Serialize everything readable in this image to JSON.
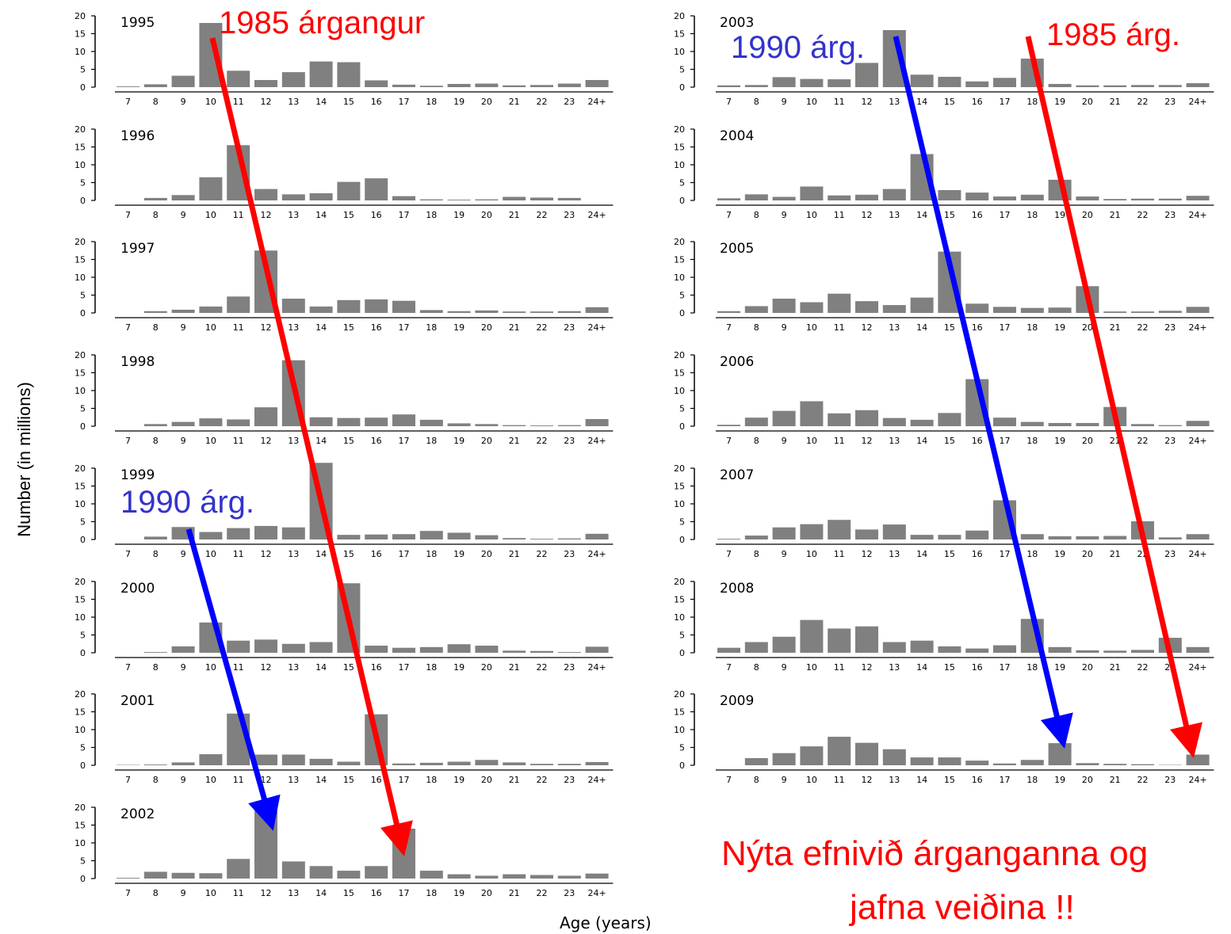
{
  "chart_data": {
    "type": "bar",
    "ylabel": "Number (in millions)",
    "xlabel": "Age (years)",
    "ylim": [
      0,
      20
    ],
    "yticks": [
      "0",
      "5",
      "10",
      "15",
      "20"
    ],
    "categories": [
      "7",
      "8",
      "9",
      "10",
      "11",
      "12",
      "13",
      "14",
      "15",
      "16",
      "17",
      "18",
      "19",
      "20",
      "21",
      "22",
      "23",
      "24+"
    ],
    "bar_color": "#808080",
    "panels": [
      {
        "year": "1995",
        "values": [
          0.2,
          0.8,
          3.2,
          18,
          4.6,
          2,
          4.2,
          7.2,
          7,
          1.9,
          0.7,
          0.4,
          0.9,
          1,
          0.5,
          0.6,
          1,
          2
        ]
      },
      {
        "year": "1996",
        "values": [
          0,
          0.7,
          1.5,
          6.5,
          15.5,
          3.2,
          1.7,
          2,
          5.2,
          6.2,
          1.2,
          0.3,
          0.2,
          0.3,
          1,
          0.8,
          0.7,
          0
        ]
      },
      {
        "year": "1997",
        "values": [
          0,
          0.5,
          0.9,
          1.8,
          4.6,
          17.5,
          4,
          1.8,
          3.6,
          3.8,
          3.4,
          0.8,
          0.5,
          0.7,
          0.4,
          0.4,
          0.5,
          1.6
        ]
      },
      {
        "year": "1998",
        "values": [
          0,
          0.6,
          1.2,
          2.2,
          1.9,
          5.3,
          18.5,
          2.5,
          2.3,
          2.4,
          3.3,
          1.8,
          0.8,
          0.6,
          0.3,
          0.2,
          0.3,
          2
        ]
      },
      {
        "year": "1999",
        "values": [
          0,
          0.8,
          3.5,
          2.1,
          3.2,
          3.8,
          3.4,
          21.5,
          1.3,
          1.4,
          1.5,
          2.4,
          1.9,
          1.2,
          0.4,
          0.2,
          0.3,
          1.6
        ]
      },
      {
        "year": "2000",
        "values": [
          0,
          0.2,
          1.8,
          8.5,
          3.4,
          3.7,
          2.5,
          3,
          19.5,
          2,
          1.4,
          1.6,
          2.4,
          2,
          0.6,
          0.5,
          0.2,
          1.7
        ]
      },
      {
        "year": "2001",
        "values": [
          0.1,
          0.2,
          0.8,
          3.1,
          14.5,
          3,
          3,
          1.8,
          1,
          14.3,
          0.5,
          0.7,
          1,
          1.5,
          0.8,
          0.4,
          0.4,
          0.9
        ]
      },
      {
        "year": "2002",
        "values": [
          0.2,
          1.9,
          1.6,
          1.5,
          5.5,
          19,
          4.8,
          3.5,
          2.2,
          3.5,
          14,
          2.2,
          1.2,
          0.8,
          1.2,
          1,
          0.8,
          1.4
        ]
      },
      {
        "year": "2003",
        "values": [
          0.5,
          0.6,
          2.8,
          2.3,
          2.2,
          6.8,
          16,
          3.5,
          2.9,
          1.6,
          2.6,
          8,
          0.9,
          0.5,
          0.5,
          0.6,
          0.6,
          1.1
        ]
      },
      {
        "year": "2004",
        "values": [
          0.6,
          1.7,
          1,
          3.9,
          1.4,
          1.6,
          3.2,
          13,
          2.9,
          2.2,
          1.1,
          1.6,
          5.8,
          1.1,
          0.4,
          0.5,
          0.5,
          1.3
        ]
      },
      {
        "year": "2005",
        "values": [
          0.5,
          1.9,
          4,
          3,
          5.4,
          3.3,
          2.2,
          4.3,
          17.2,
          2.6,
          1.7,
          1.4,
          1.5,
          7.5,
          0.4,
          0.4,
          0.6,
          1.7
        ]
      },
      {
        "year": "2006",
        "values": [
          0.4,
          2.4,
          4.3,
          7,
          3.6,
          4.5,
          2.3,
          1.8,
          3.7,
          13.2,
          2.4,
          1.2,
          0.9,
          0.9,
          5.4,
          0.6,
          0.3,
          1.5
        ]
      },
      {
        "year": "2007",
        "values": [
          0.2,
          1.1,
          3.4,
          4.3,
          5.5,
          2.8,
          4.2,
          1.3,
          1.3,
          2.5,
          11,
          1.5,
          0.9,
          0.9,
          1,
          5.1,
          0.6,
          1.5
        ]
      },
      {
        "year": "2008",
        "values": [
          1.4,
          3,
          4.5,
          9.2,
          6.8,
          7.4,
          3,
          3.4,
          1.8,
          1.2,
          2.1,
          9.5,
          1.6,
          0.7,
          0.6,
          0.8,
          4.2,
          1.6
        ]
      },
      {
        "year": "2009",
        "values": [
          0,
          2,
          3.4,
          5.3,
          8,
          6.3,
          4.5,
          2.2,
          2.2,
          1.3,
          0.5,
          1.5,
          6.2,
          0.6,
          0.4,
          0.3,
          0.1,
          3
        ]
      }
    ],
    "annotations": {
      "red_label_1": "1985 árgangur",
      "red_label_2": "1985 árg.",
      "blue_label_1": "1990 árg.",
      "blue_label_2": "1990 árg.",
      "bottom_line1": "Nýta efnivið árganganna og",
      "bottom_line2": "jafna veiðina !!",
      "red_color": "#ff0000",
      "blue_color": "#0000ff",
      "label_blue_color": "#3333cc"
    }
  }
}
